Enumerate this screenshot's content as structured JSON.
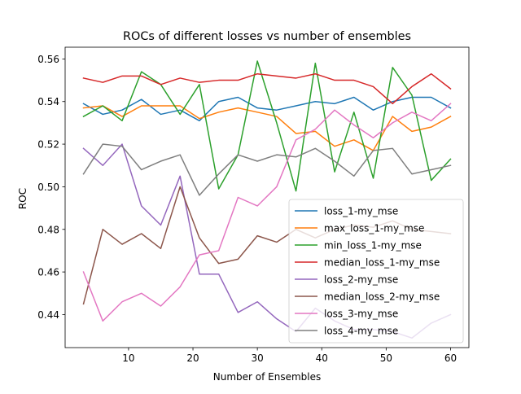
{
  "chart_data": {
    "type": "line",
    "title": "ROCs of different losses vs number of ensembles",
    "xlabel": "Number of Ensembles",
    "ylabel": "ROC",
    "xlim": [
      0.15,
      62.85
    ],
    "ylim": [
      0.4245,
      0.5655
    ],
    "xticks": [
      10,
      20,
      30,
      40,
      50,
      60
    ],
    "yticks": [
      0.44,
      0.46,
      0.48,
      0.5,
      0.52,
      0.54,
      0.56
    ],
    "ytick_labels": [
      "0.44",
      "0.46",
      "0.48",
      "0.50",
      "0.52",
      "0.54",
      "0.56"
    ],
    "grid": false,
    "legend_position": "lower right",
    "x": [
      3,
      6,
      9,
      12,
      15,
      18,
      21,
      24,
      27,
      30,
      33,
      36,
      39,
      42,
      45,
      48,
      51,
      54,
      57,
      60
    ],
    "series": [
      {
        "name": "loss_1-my_mse",
        "color": "#1f77b4",
        "values": [
          0.539,
          0.534,
          0.536,
          0.541,
          0.534,
          0.536,
          0.531,
          0.54,
          0.542,
          0.537,
          0.536,
          0.538,
          0.54,
          0.539,
          0.542,
          0.536,
          0.54,
          0.542,
          0.542,
          0.537
        ]
      },
      {
        "name": "max_loss_1-my_mse",
        "color": "#ff7f0e",
        "values": [
          0.537,
          0.538,
          0.533,
          0.538,
          0.538,
          0.538,
          0.532,
          0.535,
          0.537,
          0.535,
          0.533,
          0.525,
          0.526,
          0.519,
          0.522,
          0.517,
          0.533,
          0.526,
          0.528,
          0.533
        ]
      },
      {
        "name": "min_loss_1-my_mse",
        "color": "#2ca02c",
        "values": [
          0.533,
          0.538,
          0.531,
          0.554,
          0.548,
          0.534,
          0.548,
          0.499,
          0.515,
          0.559,
          0.53,
          0.498,
          0.558,
          0.507,
          0.535,
          0.504,
          0.556,
          0.543,
          0.503,
          0.513
        ]
      },
      {
        "name": "median_loss_1-my_mse",
        "color": "#d62728",
        "values": [
          0.551,
          0.549,
          0.552,
          0.552,
          0.548,
          0.551,
          0.549,
          0.55,
          0.55,
          0.553,
          0.552,
          0.551,
          0.553,
          0.55,
          0.55,
          0.547,
          0.539,
          0.547,
          0.553,
          0.546
        ]
      },
      {
        "name": "loss_2-my_mse",
        "color": "#9467bd",
        "values": [
          0.518,
          0.51,
          0.52,
          0.491,
          0.482,
          0.505,
          0.459,
          0.459,
          0.441,
          0.446,
          0.438,
          0.432,
          0.443,
          0.437,
          0.433,
          0.433,
          0.432,
          0.429,
          0.436,
          0.44
        ]
      },
      {
        "name": "median_loss_2-my_mse",
        "color": "#8c564b",
        "values": [
          0.445,
          0.48,
          0.473,
          0.478,
          0.471,
          0.5,
          0.476,
          0.464,
          0.466,
          0.477,
          0.474,
          0.48,
          0.476,
          0.48,
          0.482,
          0.481,
          0.484,
          0.48,
          0.479,
          0.478
        ]
      },
      {
        "name": "loss_3-my_mse",
        "color": "#e377c2",
        "values": [
          0.46,
          0.437,
          0.446,
          0.45,
          0.444,
          0.453,
          0.468,
          0.47,
          0.495,
          0.491,
          0.5,
          0.522,
          0.527,
          0.536,
          0.529,
          0.523,
          0.53,
          0.535,
          0.531,
          0.539
        ]
      },
      {
        "name": "loss_4-my_mse",
        "color": "#7f7f7f",
        "values": [
          0.506,
          0.52,
          0.519,
          0.508,
          0.512,
          0.515,
          0.496,
          0.506,
          0.515,
          0.512,
          0.515,
          0.514,
          0.518,
          0.512,
          0.505,
          0.517,
          0.518,
          0.506,
          0.508,
          0.51
        ]
      }
    ]
  }
}
